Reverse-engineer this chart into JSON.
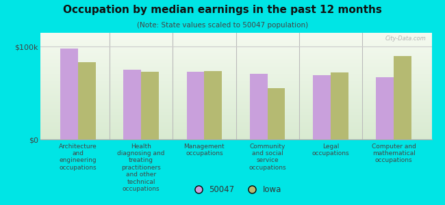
{
  "title": "Occupation by median earnings in the past 12 months",
  "subtitle": "(Note: State values scaled to 50047 population)",
  "background_color": "#00e5e5",
  "plot_bg_top": "#d8ecd0",
  "plot_bg_bottom": "#f5f8ee",
  "categories": [
    "Architecture\nand\nengineering\noccupations",
    "Health\ndiagnosing and\ntreating\npractitioners\nand other\ntechnical\noccupations",
    "Management\noccupations",
    "Community\nand social\nservice\noccupations",
    "Legal\noccupations",
    "Computer and\nmathematical\noccupations"
  ],
  "values_50047": [
    98000,
    75000,
    73000,
    71000,
    69000,
    67000
  ],
  "values_iowa": [
    83000,
    73000,
    74000,
    55000,
    72000,
    90000
  ],
  "color_50047": "#c9a0dc",
  "color_iowa": "#b5ba72",
  "ytick_label_0": "$0",
  "ytick_label_100k": "$100k",
  "ylim": [
    0,
    115000
  ],
  "yticks": [
    0,
    100000
  ],
  "bar_width": 0.28,
  "legend_50047": "50047",
  "legend_iowa": "Iowa",
  "watermark": "City-Data.com"
}
